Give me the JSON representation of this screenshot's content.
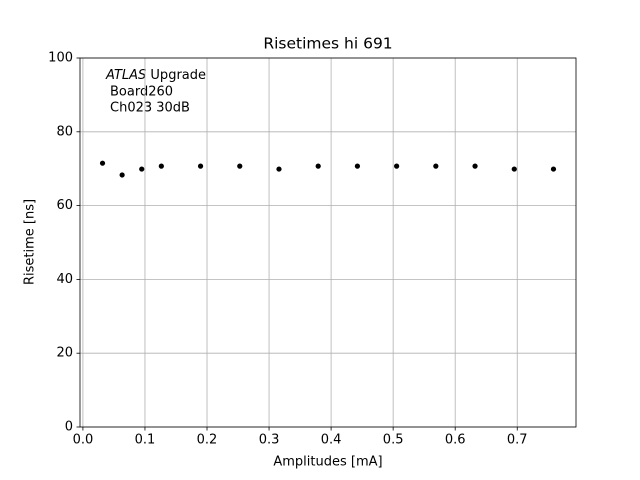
{
  "chart_data": {
    "type": "scatter",
    "title": "Risetimes hi 691",
    "xlabel": "Amplitudes [mA]",
    "ylabel": "Risetime [ns]",
    "annotation": {
      "italic": "ATLAS",
      "rest": "Upgrade",
      "lines": [
        "Board260",
        "Ch023 30dB"
      ]
    },
    "x": [
      0.0316,
      0.0632,
      0.0948,
      0.1264,
      0.1896,
      0.2528,
      0.316,
      0.3792,
      0.4424,
      0.5056,
      0.5688,
      0.632,
      0.6952,
      0.7584
    ],
    "values": [
      71.5,
      68.3,
      69.9,
      70.7,
      70.7,
      70.7,
      69.9,
      70.7,
      70.7,
      70.7,
      70.7,
      70.7,
      69.9,
      69.9
    ],
    "color": "#000000",
    "xlim": [
      -0.0047,
      0.7947
    ],
    "xticks": [
      {
        "value": 0,
        "label": "0.0"
      },
      0.1,
      0.2,
      0.3,
      0.4,
      0.5,
      0.6,
      0.7
    ],
    "ylim": [
      0,
      100
    ],
    "yticks": [
      0,
      20,
      40,
      60,
      80,
      100
    ],
    "grid": true
  }
}
